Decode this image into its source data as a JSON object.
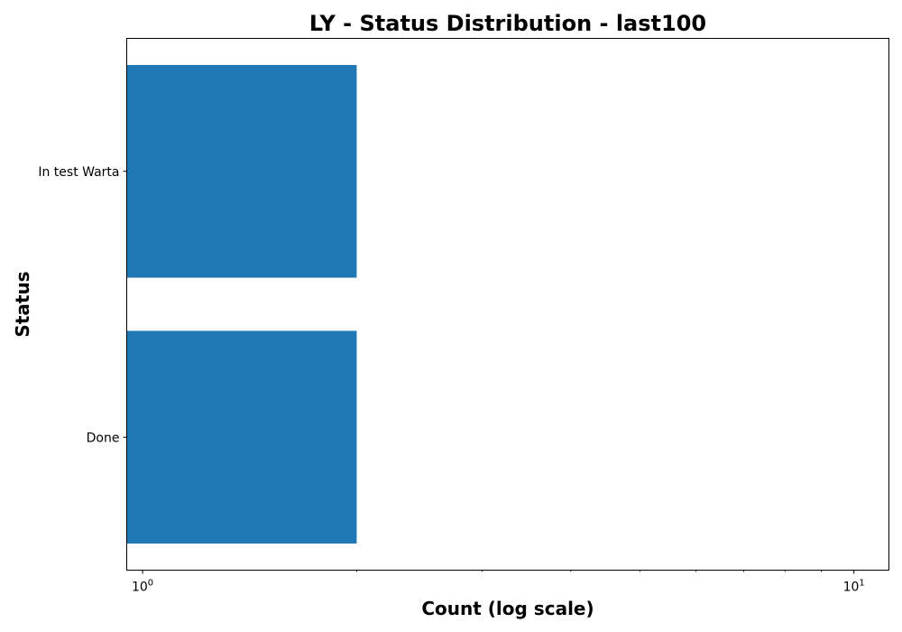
{
  "chart_data": {
    "type": "bar",
    "orientation": "horizontal",
    "title": "LY - Status Distribution - last100",
    "xlabel": "Count (log scale)",
    "ylabel": "Status",
    "x_scale": "log",
    "xlim": [
      0.95,
      11.2
    ],
    "categories": [
      "Done",
      "In test Warta"
    ],
    "values": [
      2,
      2
    ],
    "x_ticks": [
      {
        "base": "10",
        "exp": "0",
        "value": 1
      },
      {
        "base": "10",
        "exp": "1",
        "value": 10
      }
    ],
    "bar_color": "#1f77b4",
    "grid": false,
    "legend": "none"
  }
}
